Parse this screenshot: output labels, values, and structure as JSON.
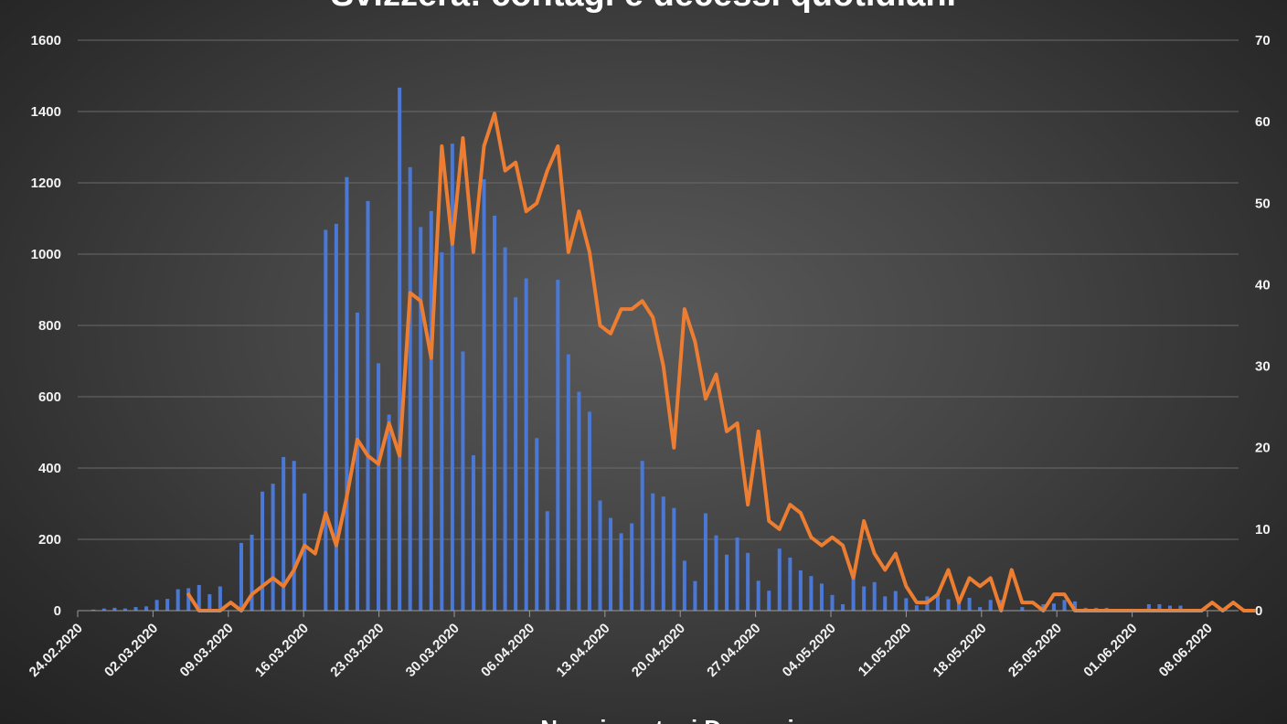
{
  "chart_data": {
    "type": "bar+line",
    "title": "Svizzera: contagi e decessi quotidiani",
    "legend_text": "Nuovi contagi Decessi",
    "x_tick_labels": [
      "24.02.2020",
      "02.03.2020",
      "09.03.2020",
      "16.03.2020",
      "23.03.2020",
      "30.03.2020",
      "06.04.2020",
      "13.04.2020",
      "20.04.2020",
      "27.04.2020",
      "04.05.2020",
      "11.05.2020",
      "18.05.2020",
      "25.05.2020",
      "01.06.2020",
      "08.06.2020"
    ],
    "y_left": {
      "min": 0,
      "max": 1600,
      "step": 200,
      "ticks": [
        "0",
        "200",
        "400",
        "600",
        "800",
        "1000",
        "1200",
        "1400",
        "1600"
      ]
    },
    "y_right": {
      "min": 0,
      "max": 70,
      "step": 10,
      "ticks": [
        "0",
        "10",
        "20",
        "30",
        "40",
        "50",
        "60",
        "70"
      ]
    },
    "days": 110,
    "series": [
      {
        "name": "Nuovi contagi",
        "type": "bar",
        "axis": "left",
        "color": "#4a78d4",
        "values": [
          1,
          3,
          6,
          8,
          6,
          10,
          12,
          30,
          33,
          60,
          63,
          72,
          46,
          68,
          0,
          190,
          213,
          334,
          356,
          431,
          420,
          329,
          0,
          1068,
          1085,
          1216,
          836,
          1149,
          694,
          550,
          1467,
          1244,
          1076,
          1121,
          1005,
          1310,
          727,
          436,
          1210,
          1108,
          1019,
          879,
          932,
          484,
          279,
          928,
          719,
          614,
          558,
          309,
          260,
          217,
          245,
          420,
          329,
          320,
          288,
          140,
          83,
          273,
          211,
          157,
          205,
          162,
          84,
          56,
          174,
          149,
          113,
          97,
          76,
          44,
          18,
          90,
          68,
          80,
          40,
          55,
          35,
          15,
          40,
          50,
          32,
          35,
          36,
          10,
          30,
          30,
          0,
          10,
          0,
          18,
          20,
          30,
          26,
          8,
          8,
          8,
          0,
          0,
          0,
          18,
          18,
          14,
          14,
          0,
          0,
          0,
          0,
          0
        ]
      },
      {
        "name": "Decessi",
        "type": "line",
        "axis": "right",
        "color": "#ed7d31",
        "start_day": 10,
        "values": [
          2,
          0,
          0,
          0,
          1,
          0,
          2,
          3,
          4,
          3,
          5,
          8,
          7,
          12,
          8,
          14,
          21,
          19,
          18,
          23,
          19,
          39,
          38,
          31,
          57,
          45,
          58,
          44,
          57,
          61,
          54,
          55,
          49,
          50,
          54,
          57,
          44,
          49,
          44,
          35,
          34,
          37,
          37,
          38,
          36,
          30,
          20,
          37,
          33,
          26,
          29,
          22,
          23,
          13,
          22,
          11,
          10,
          13,
          12,
          9,
          8,
          9,
          8,
          4,
          11,
          7,
          5,
          7,
          3,
          1,
          1,
          2,
          5,
          1,
          4,
          3,
          4,
          0,
          5,
          1,
          1,
          0,
          2,
          2,
          0,
          0,
          0,
          0,
          0,
          0,
          0,
          0,
          0,
          0,
          0,
          0,
          0,
          1,
          0,
          1,
          0,
          0
        ]
      }
    ]
  }
}
